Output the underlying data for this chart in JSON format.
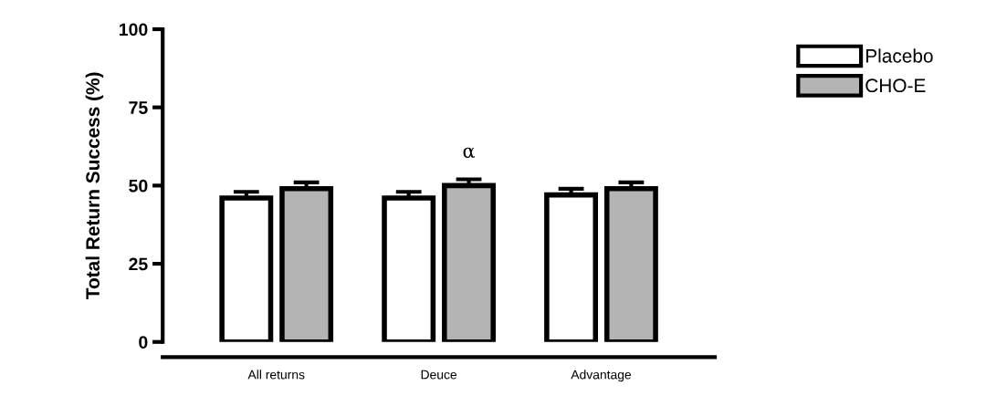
{
  "chart_data": {
    "type": "bar",
    "ylabel": "Total Return Success (%)",
    "categories": [
      "All returns",
      "Deuce",
      "Advantage"
    ],
    "series": [
      {
        "name": "Placebo",
        "color": "#ffffff",
        "values": [
          46,
          46,
          47
        ],
        "errors": [
          2,
          2,
          2
        ]
      },
      {
        "name": "CHO-E",
        "color": "#b4b4b4",
        "values": [
          49,
          50,
          49
        ],
        "errors": [
          2,
          2,
          2
        ]
      }
    ],
    "ylim": [
      0,
      100
    ],
    "yticks": [
      0,
      25,
      50,
      75,
      100
    ],
    "annotations": [
      "α"
    ],
    "grid": false,
    "legend": "top right"
  }
}
